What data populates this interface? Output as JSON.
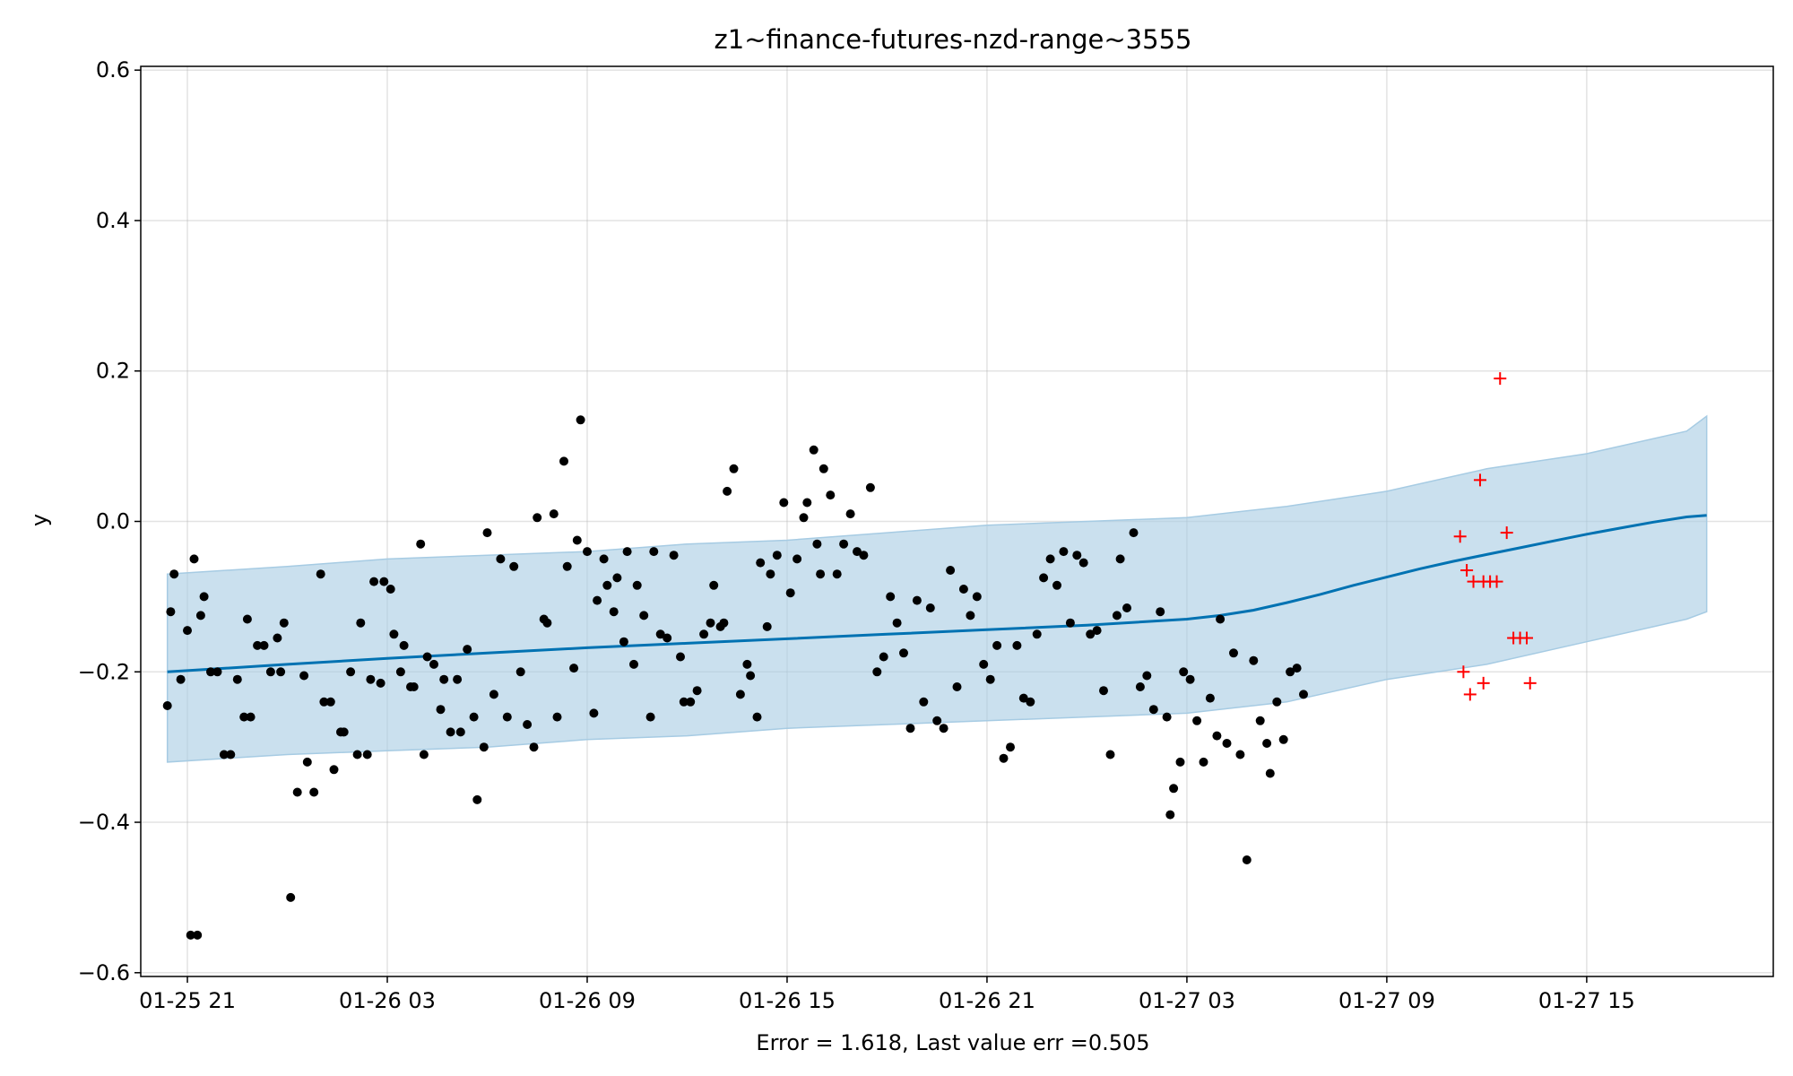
{
  "chart_data": {
    "type": "scatter",
    "title": "z1~finance-futures-nzd-range~3555",
    "xlabel": "Error = 1.618, Last value err =0.505",
    "ylabel": "y",
    "x_unit": "hours",
    "x_range_hours": [
      -1.4,
      32.7
    ],
    "x_ticks": [
      {
        "hour": 0,
        "label": "01-25 21"
      },
      {
        "hour": 6,
        "label": "01-26 03"
      },
      {
        "hour": 12,
        "label": "01-26 09"
      },
      {
        "hour": 18,
        "label": "01-26 15"
      },
      {
        "hour": 24,
        "label": "01-26 21"
      },
      {
        "hour": 30,
        "label": "01-27 03"
      },
      {
        "hour": 36,
        "label": "01-27 09"
      },
      {
        "hour": 42,
        "label": "01-27 15"
      }
    ],
    "ylim": [
      -0.605,
      0.605
    ],
    "y_ticks": [
      {
        "value": 0.6,
        "label": "0.6"
      },
      {
        "value": 0.4,
        "label": "0.4"
      },
      {
        "value": 0.2,
        "label": "0.2"
      },
      {
        "value": 0.0,
        "label": "0.0"
      },
      {
        "value": -0.2,
        "label": "−0.2"
      },
      {
        "value": -0.4,
        "label": "−0.4"
      },
      {
        "value": -0.6,
        "label": "−0.6"
      }
    ],
    "grid": true,
    "colors": {
      "forecast_line": "#0072b2",
      "interval_fill": "#a6cbe3",
      "observed": "#000000",
      "holdout": "#ff0000"
    },
    "forecast": {
      "x": [
        -0.6,
        3,
        6,
        9,
        12,
        15,
        18,
        21,
        24,
        27,
        30,
        31,
        32,
        33,
        34,
        35,
        36,
        37,
        38,
        39,
        40,
        41,
        42,
        43,
        44,
        45,
        45.6
      ],
      "y": [
        -0.2,
        -0.19,
        -0.182,
        -0.175,
        -0.168,
        -0.162,
        -0.156,
        -0.15,
        -0.144,
        -0.138,
        -0.13,
        -0.125,
        -0.118,
        -0.108,
        -0.097,
        -0.085,
        -0.074,
        -0.063,
        -0.053,
        -0.044,
        -0.035,
        -0.026,
        -0.017,
        -0.009,
        -0.001,
        0.006,
        0.008
      ]
    },
    "interval": {
      "x": [
        -0.6,
        3,
        6,
        9,
        12,
        15,
        18,
        21,
        24,
        27,
        30,
        33,
        36,
        39,
        42,
        45,
        45.6
      ],
      "upper": [
        -0.07,
        -0.06,
        -0.05,
        -0.045,
        -0.04,
        -0.03,
        -0.025,
        -0.015,
        -0.005,
        0.0,
        0.005,
        0.02,
        0.04,
        0.07,
        0.09,
        0.12,
        0.14
      ],
      "lower": [
        -0.32,
        -0.31,
        -0.305,
        -0.3,
        -0.29,
        -0.285,
        -0.275,
        -0.27,
        -0.265,
        -0.26,
        -0.255,
        -0.24,
        -0.21,
        -0.19,
        -0.16,
        -0.13,
        -0.12
      ]
    },
    "series": [
      {
        "marker": "point",
        "points": [
          [
            -0.6,
            -0.245
          ],
          [
            -0.5,
            -0.12
          ],
          [
            -0.4,
            -0.07
          ],
          [
            -0.2,
            -0.21
          ],
          [
            0,
            -0.145
          ],
          [
            0.1,
            -0.55
          ],
          [
            0.2,
            -0.05
          ],
          [
            0.3,
            -0.55
          ],
          [
            0.4,
            -0.125
          ],
          [
            0.5,
            -0.1
          ],
          [
            0.7,
            -0.2
          ],
          [
            0.9,
            -0.2
          ],
          [
            1.1,
            -0.31
          ],
          [
            1.3,
            -0.31
          ],
          [
            1.5,
            -0.21
          ],
          [
            1.7,
            -0.26
          ],
          [
            1.8,
            -0.13
          ],
          [
            1.9,
            -0.26
          ],
          [
            2.1,
            -0.165
          ],
          [
            2.3,
            -0.165
          ],
          [
            2.5,
            -0.2
          ],
          [
            2.7,
            -0.155
          ],
          [
            2.8,
            -0.2
          ],
          [
            2.9,
            -0.135
          ],
          [
            3.1,
            -0.5
          ],
          [
            3.3,
            -0.36
          ],
          [
            3.5,
            -0.205
          ],
          [
            3.6,
            -0.32
          ],
          [
            3.8,
            -0.36
          ],
          [
            4,
            -0.07
          ],
          [
            4.1,
            -0.24
          ],
          [
            4.3,
            -0.24
          ],
          [
            4.4,
            -0.33
          ],
          [
            4.6,
            -0.28
          ],
          [
            4.7,
            -0.28
          ],
          [
            4.9,
            -0.2
          ],
          [
            5.1,
            -0.31
          ],
          [
            5.2,
            -0.135
          ],
          [
            5.4,
            -0.31
          ],
          [
            5.5,
            -0.21
          ],
          [
            5.6,
            -0.08
          ],
          [
            5.8,
            -0.215
          ],
          [
            5.9,
            -0.08
          ],
          [
            6.1,
            -0.09
          ],
          [
            6.2,
            -0.15
          ],
          [
            6.4,
            -0.2
          ],
          [
            6.5,
            -0.165
          ],
          [
            6.7,
            -0.22
          ],
          [
            6.8,
            -0.22
          ],
          [
            7,
            -0.03
          ],
          [
            7.1,
            -0.31
          ],
          [
            7.2,
            -0.18
          ],
          [
            7.4,
            -0.19
          ],
          [
            7.6,
            -0.25
          ],
          [
            7.7,
            -0.21
          ],
          [
            7.9,
            -0.28
          ],
          [
            8.1,
            -0.21
          ],
          [
            8.2,
            -0.28
          ],
          [
            8.4,
            -0.17
          ],
          [
            8.6,
            -0.26
          ],
          [
            8.7,
            -0.37
          ],
          [
            8.9,
            -0.3
          ],
          [
            9,
            -0.015
          ],
          [
            9.2,
            -0.23
          ],
          [
            9.4,
            -0.05
          ],
          [
            9.6,
            -0.26
          ],
          [
            9.8,
            -0.06
          ],
          [
            10,
            -0.2
          ],
          [
            10.2,
            -0.27
          ],
          [
            10.4,
            -0.3
          ],
          [
            10.5,
            0.005
          ],
          [
            10.7,
            -0.13
          ],
          [
            10.8,
            -0.135
          ],
          [
            11,
            0.01
          ],
          [
            11.1,
            -0.26
          ],
          [
            11.3,
            0.08
          ],
          [
            11.4,
            -0.06
          ],
          [
            11.6,
            -0.195
          ],
          [
            11.7,
            -0.025
          ],
          [
            11.8,
            0.135
          ],
          [
            12,
            -0.04
          ],
          [
            12.2,
            -0.255
          ],
          [
            12.3,
            -0.105
          ],
          [
            12.5,
            -0.05
          ],
          [
            12.6,
            -0.085
          ],
          [
            12.8,
            -0.12
          ],
          [
            12.9,
            -0.075
          ],
          [
            13.1,
            -0.16
          ],
          [
            13.2,
            -0.04
          ],
          [
            13.4,
            -0.19
          ],
          [
            13.5,
            -0.085
          ],
          [
            13.7,
            -0.125
          ],
          [
            13.9,
            -0.26
          ],
          [
            14,
            -0.04
          ],
          [
            14.2,
            -0.15
          ],
          [
            14.4,
            -0.155
          ],
          [
            14.6,
            -0.045
          ],
          [
            14.8,
            -0.18
          ],
          [
            14.9,
            -0.24
          ],
          [
            15.1,
            -0.24
          ],
          [
            15.3,
            -0.225
          ],
          [
            15.5,
            -0.15
          ],
          [
            15.7,
            -0.135
          ],
          [
            15.8,
            -0.085
          ],
          [
            16,
            -0.14
          ],
          [
            16.1,
            -0.135
          ],
          [
            16.2,
            0.04
          ],
          [
            16.4,
            0.07
          ],
          [
            16.6,
            -0.23
          ],
          [
            16.8,
            -0.19
          ],
          [
            16.9,
            -0.205
          ],
          [
            17.1,
            -0.26
          ],
          [
            17.2,
            -0.055
          ],
          [
            17.4,
            -0.14
          ],
          [
            17.5,
            -0.07
          ],
          [
            17.7,
            -0.045
          ],
          [
            17.9,
            0.025
          ],
          [
            18.1,
            -0.095
          ],
          [
            18.3,
            -0.05
          ],
          [
            18.5,
            0.005
          ],
          [
            18.6,
            0.025
          ],
          [
            18.8,
            0.095
          ],
          [
            18.9,
            -0.03
          ],
          [
            19,
            -0.07
          ],
          [
            19.1,
            0.07
          ],
          [
            19.3,
            0.035
          ],
          [
            19.5,
            -0.07
          ],
          [
            19.7,
            -0.03
          ],
          [
            19.9,
            0.01
          ],
          [
            20.1,
            -0.04
          ],
          [
            20.3,
            -0.045
          ],
          [
            20.5,
            0.045
          ],
          [
            20.7,
            -0.2
          ],
          [
            20.9,
            -0.18
          ],
          [
            21.1,
            -0.1
          ],
          [
            21.3,
            -0.135
          ],
          [
            21.5,
            -0.175
          ],
          [
            21.7,
            -0.275
          ],
          [
            21.9,
            -0.105
          ],
          [
            22.1,
            -0.24
          ],
          [
            22.3,
            -0.115
          ],
          [
            22.5,
            -0.265
          ],
          [
            22.7,
            -0.275
          ],
          [
            22.9,
            -0.065
          ],
          [
            23.1,
            -0.22
          ],
          [
            23.3,
            -0.09
          ],
          [
            23.5,
            -0.125
          ],
          [
            23.7,
            -0.1
          ],
          [
            23.9,
            -0.19
          ],
          [
            24.1,
            -0.21
          ],
          [
            24.3,
            -0.165
          ],
          [
            24.5,
            -0.315
          ],
          [
            24.7,
            -0.3
          ],
          [
            24.9,
            -0.165
          ],
          [
            25.1,
            -0.235
          ],
          [
            25.3,
            -0.24
          ],
          [
            25.5,
            -0.15
          ],
          [
            25.7,
            -0.075
          ],
          [
            25.9,
            -0.05
          ],
          [
            26.1,
            -0.085
          ],
          [
            26.3,
            -0.04
          ],
          [
            26.5,
            -0.135
          ],
          [
            26.7,
            -0.045
          ],
          [
            26.9,
            -0.055
          ],
          [
            27.1,
            -0.15
          ],
          [
            27.3,
            -0.145
          ],
          [
            27.5,
            -0.225
          ],
          [
            27.7,
            -0.31
          ],
          [
            27.9,
            -0.125
          ],
          [
            28,
            -0.05
          ],
          [
            28.2,
            -0.115
          ],
          [
            28.4,
            -0.015
          ],
          [
            28.6,
            -0.22
          ],
          [
            28.8,
            -0.205
          ],
          [
            29,
            -0.25
          ],
          [
            29.2,
            -0.12
          ],
          [
            29.4,
            -0.26
          ],
          [
            29.5,
            -0.39
          ],
          [
            29.6,
            -0.355
          ],
          [
            29.8,
            -0.32
          ],
          [
            29.9,
            -0.2
          ],
          [
            30.1,
            -0.21
          ],
          [
            30.3,
            -0.265
          ],
          [
            30.5,
            -0.32
          ],
          [
            30.7,
            -0.235
          ],
          [
            30.9,
            -0.285
          ],
          [
            31,
            -0.13
          ],
          [
            31.2,
            -0.295
          ],
          [
            31.4,
            -0.175
          ],
          [
            31.6,
            -0.31
          ],
          [
            31.8,
            -0.45
          ],
          [
            32,
            -0.185
          ],
          [
            32.2,
            -0.265
          ],
          [
            32.4,
            -0.295
          ],
          [
            32.5,
            -0.335
          ],
          [
            32.7,
            -0.24
          ],
          [
            32.9,
            -0.29
          ],
          [
            33.1,
            -0.2
          ],
          [
            33.3,
            -0.195
          ],
          [
            33.5,
            -0.23
          ]
        ]
      },
      {
        "marker": "cross",
        "points": [
          [
            38.2,
            -0.02
          ],
          [
            38.4,
            -0.065
          ],
          [
            38.6,
            -0.08
          ],
          [
            38.8,
            0.055
          ],
          [
            38.9,
            -0.08
          ],
          [
            39.1,
            -0.08
          ],
          [
            39.3,
            -0.08
          ],
          [
            39.4,
            0.19
          ],
          [
            39.6,
            -0.015
          ],
          [
            39.8,
            -0.155
          ],
          [
            40,
            -0.155
          ],
          [
            40.2,
            -0.155
          ],
          [
            40.3,
            -0.215
          ],
          [
            38.3,
            -0.2
          ],
          [
            38.5,
            -0.23
          ],
          [
            38.9,
            -0.215
          ]
        ]
      }
    ]
  }
}
